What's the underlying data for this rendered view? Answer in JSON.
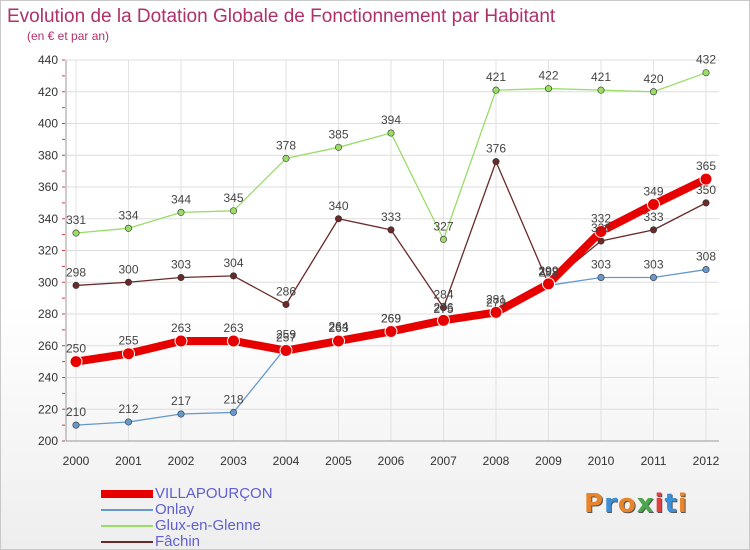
{
  "chart_data": {
    "type": "line",
    "title": "Evolution de la Dotation Globale de Fonctionnement par Habitant",
    "subtitle": "(en € et par an)",
    "x": [
      "2000",
      "2001",
      "2002",
      "2003",
      "2004",
      "2005",
      "2006",
      "2007",
      "2008",
      "2009",
      "2010",
      "2011",
      "2012"
    ],
    "ylim": [
      200,
      440
    ],
    "yticks": [
      200,
      220,
      240,
      260,
      280,
      300,
      320,
      340,
      360,
      380,
      400,
      420,
      440
    ],
    "grid": true,
    "legend_position": "bottom-left",
    "series": [
      {
        "name": "VILLAPOURÇON",
        "color": "#e60000",
        "values": [
          250,
          255,
          263,
          263,
          257,
          263,
          269,
          276,
          281,
          299,
          332,
          349,
          365
        ]
      },
      {
        "name": "Onlay",
        "color": "#6699cc",
        "values": [
          210,
          212,
          217,
          218,
          259,
          264,
          269,
          275,
          279,
          298,
          303,
          303,
          308
        ]
      },
      {
        "name": "Glux-en-Glenne",
        "color": "#99dd66",
        "values": [
          331,
          334,
          344,
          345,
          378,
          385,
          394,
          327,
          421,
          422,
          421,
          420,
          432
        ]
      },
      {
        "name": "Fâchin",
        "color": "#6b2a2a",
        "values": [
          298,
          300,
          303,
          304,
          286,
          340,
          333,
          284,
          376,
          299,
          326,
          333,
          350
        ]
      }
    ]
  },
  "logo": {
    "letters": [
      "P",
      "r",
      "o",
      "x",
      "i",
      "t",
      "i"
    ],
    "colors": [
      "#e8842a",
      "#3d8fd6",
      "#e8842a",
      "#4aa84a",
      "#e04040",
      "#3d8fd6",
      "#e8842a"
    ]
  }
}
